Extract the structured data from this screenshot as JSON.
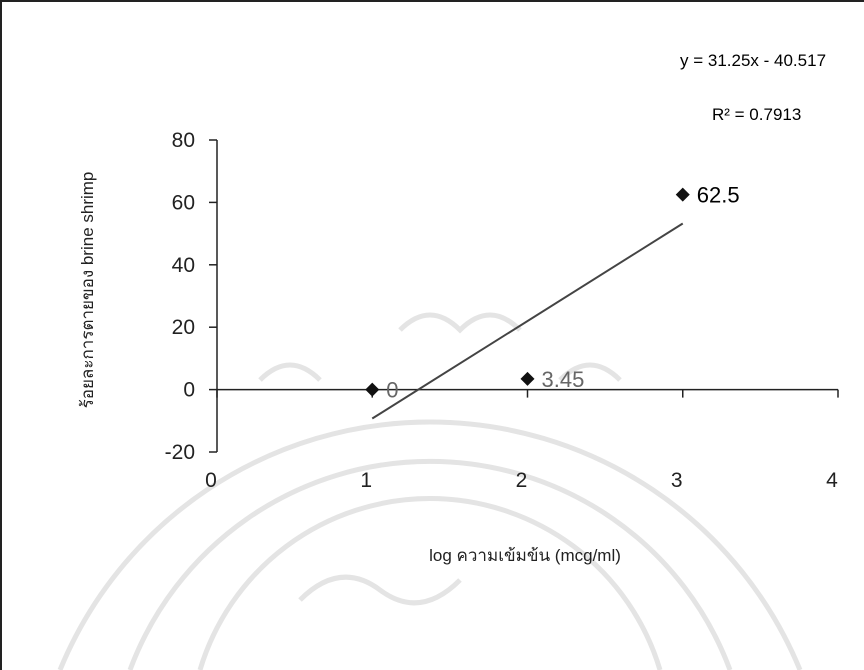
{
  "chart_data": {
    "type": "scatter",
    "xlabel": "log ความเข้มข้น (mcg/ml)",
    "ylabel": "ร้อยละการตายของ brine shrimp",
    "xlim": [
      0,
      4
    ],
    "ylim": [
      -20,
      80
    ],
    "x_ticks": [
      "0",
      "1",
      "2",
      "3",
      "4"
    ],
    "y_ticks": [
      "80",
      "60",
      "40",
      "20",
      "0",
      "-20"
    ],
    "points": [
      {
        "x": 1,
        "y": 0,
        "label": "0"
      },
      {
        "x": 2,
        "y": 3.45,
        "label": "3.45"
      },
      {
        "x": 3,
        "y": 62.5,
        "label": "62.5"
      }
    ],
    "trendline": {
      "slope": 31.25,
      "intercept": -40.517,
      "x_range": [
        1,
        3
      ]
    },
    "equation": "y = 31.25x - 40.517",
    "r2_label": "R² = 0.7913",
    "colors": {
      "axis": "#222222",
      "marker": "#111111",
      "trendline": "#444444",
      "watermark": "#e4e4e4"
    }
  }
}
